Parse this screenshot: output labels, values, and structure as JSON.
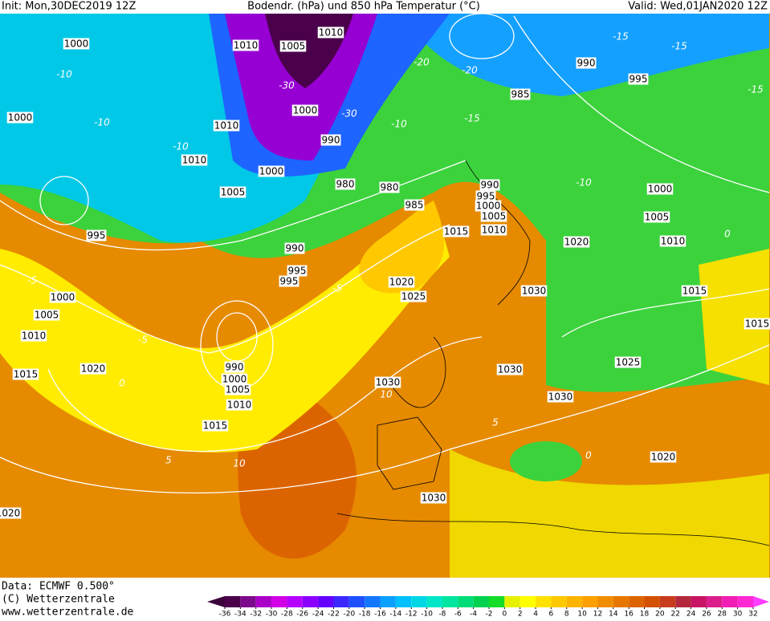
{
  "header": {
    "init": "Init: Mon,30DEC2019 12Z",
    "title": "Bodendr. (hPa) und 850 hPa Temperatur (°C)",
    "valid": "Valid: Wed,01JAN2020 12Z"
  },
  "isobar_labels": [
    "1000",
    "1010",
    "1005",
    "1010",
    "1000",
    "1010",
    "1000",
    "990",
    "1010",
    "1000",
    "1005",
    "980",
    "980",
    "985",
    "990",
    "995",
    "1000",
    "1005",
    "1015",
    "1010",
    "1020",
    "990",
    "995",
    "985",
    "1000",
    "1005",
    "1010",
    "995",
    "990",
    "995",
    "995",
    "1020",
    "1025",
    "1030",
    "1015",
    "1015",
    "1000",
    "1005",
    "1010",
    "1015",
    "1020",
    "990",
    "1000",
    "1005",
    "1010",
    "1015",
    "1030",
    "1030",
    "1025",
    "1030",
    "1020",
    "1030",
    "1020"
  ],
  "temperature_labels": [
    "-10",
    "-10",
    "-10",
    "-30",
    "-30",
    "-20",
    "-20",
    "-15",
    "-10",
    "-15",
    "-15",
    "-15",
    "-10",
    "-5",
    "-5",
    "0",
    "5",
    "10",
    "10",
    "-5",
    "5",
    "0",
    "0"
  ],
  "footer": {
    "data": "Data: ECMWF  0.500°",
    "copyright": "(C) Wetterzentrale",
    "url": "www.wetterzentrale.de"
  },
  "colorbar": {
    "ticks": [
      -36,
      -34,
      -32,
      -30,
      -28,
      -26,
      -24,
      -22,
      -20,
      -18,
      -16,
      -14,
      -12,
      -10,
      -8,
      -6,
      -4,
      -2,
      0,
      2,
      4,
      6,
      8,
      10,
      12,
      14,
      16,
      18,
      20,
      22,
      24,
      26,
      28,
      30,
      32
    ],
    "colors": [
      "#4b004b",
      "#7d0a8c",
      "#aa00c8",
      "#d200e6",
      "#b400ff",
      "#8c00ff",
      "#6400ff",
      "#3c28ff",
      "#1e50ff",
      "#1478ff",
      "#0aa0ff",
      "#00c0ff",
      "#00d7e6",
      "#00e6c8",
      "#00e6a0",
      "#00dc78",
      "#00d250",
      "#14dc28",
      "#e6f000",
      "#ffff00",
      "#ffe100",
      "#ffc800",
      "#ffb400",
      "#ffa000",
      "#f08c00",
      "#e67800",
      "#dc6400",
      "#d25000",
      "#c83c1e",
      "#b4283c",
      "#c81464",
      "#dc1e8c",
      "#f01eb4",
      "#ff28d2"
    ],
    "low_color": "#3c003c",
    "high_color": "#ff3cff"
  }
}
